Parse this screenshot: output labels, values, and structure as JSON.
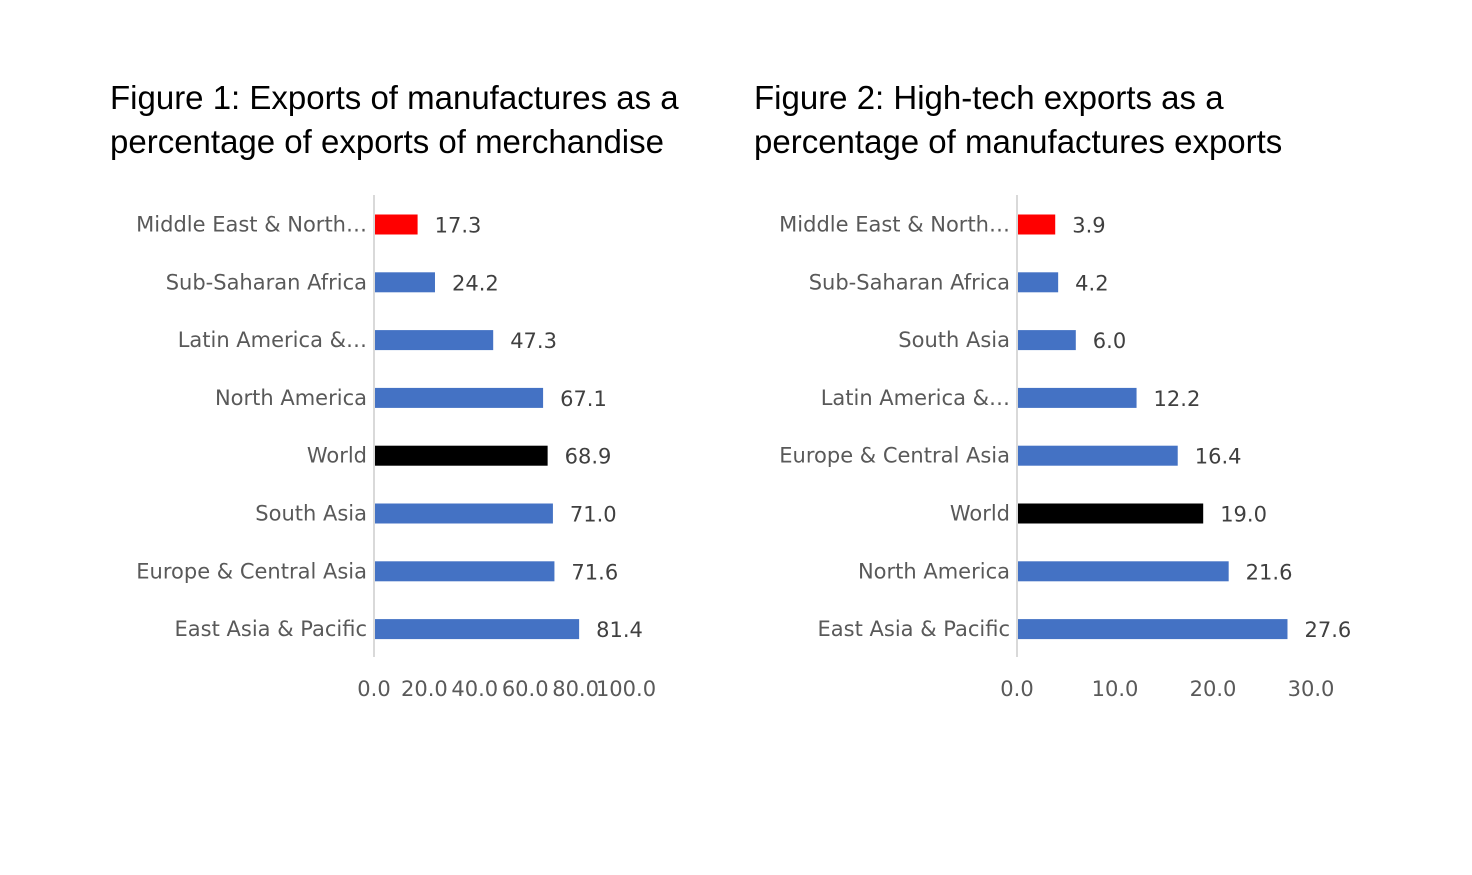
{
  "chart_data": [
    {
      "type": "bar",
      "orientation": "horizontal",
      "title_lines": [
        "Figure 1: Exports of manufactures as a",
        "percentage of exports of merchandise"
      ],
      "categories": [
        "Middle East & North…",
        "Sub-Saharan Africa",
        "Latin America &…",
        "North America",
        "World",
        "South Asia",
        "Europe & Central Asia",
        "East Asia & Pacific"
      ],
      "values": [
        17.3,
        24.2,
        47.3,
        67.1,
        68.9,
        71.0,
        71.6,
        81.4
      ],
      "value_labels": [
        "17.3",
        "24.2",
        "47.3",
        "67.1",
        "68.9",
        "71.0",
        "71.6",
        "81.4"
      ],
      "bar_colors": [
        "#ff0000",
        "#4472c4",
        "#4472c4",
        "#4472c4",
        "#000000",
        "#4472c4",
        "#4472c4",
        "#4472c4"
      ],
      "xlim": [
        0,
        100
      ],
      "x_ticks": [
        "0.0",
        "20.0",
        "40.0",
        "60.0",
        "80.0",
        "100.0"
      ],
      "xlabel": "",
      "ylabel": "",
      "grid": false,
      "legend": "none"
    },
    {
      "type": "bar",
      "orientation": "horizontal",
      "title_lines": [
        "Figure 2: High-tech exports as a",
        "percentage of manufactures exports"
      ],
      "categories": [
        "Middle East & North…",
        "Sub-Saharan Africa",
        "South Asia",
        "Latin America &…",
        "Europe & Central Asia",
        "World",
        "North America",
        "East Asia & Pacific"
      ],
      "values": [
        3.9,
        4.2,
        6.0,
        12.2,
        16.4,
        19.0,
        21.6,
        27.6
      ],
      "value_labels": [
        "3.9",
        "4.2",
        "6.0",
        "12.2",
        "16.4",
        "19.0",
        "21.6",
        "27.6"
      ],
      "bar_colors": [
        "#ff0000",
        "#4472c4",
        "#4472c4",
        "#4472c4",
        "#4472c4",
        "#000000",
        "#4472c4",
        "#4472c4"
      ],
      "xlim": [
        0,
        30
      ],
      "x_ticks": [
        "0.0",
        "10.0",
        "20.0",
        "30.0"
      ],
      "xlabel": "",
      "ylabel": "",
      "grid": false,
      "legend": "none"
    }
  ]
}
